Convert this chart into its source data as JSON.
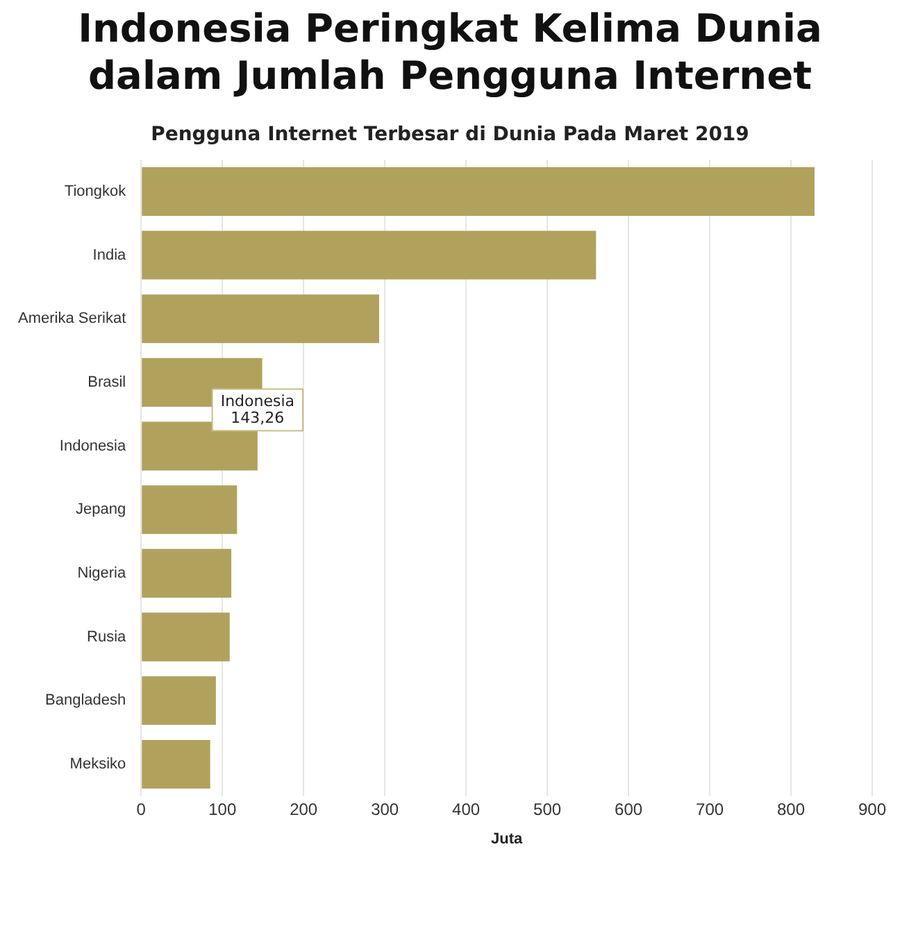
{
  "chart_data": {
    "type": "bar",
    "orientation": "horizontal",
    "title": "Indonesia Peringkat Kelima Dunia dalam Jumlah Pengguna Internet",
    "subtitle": "Pengguna Internet Terbesar di Dunia Pada Maret 2019",
    "xlabel": "Juta",
    "categories": [
      "Tiongkok",
      "India",
      "Amerika Serikat",
      "Brasil",
      "Indonesia",
      "Jepang",
      "Nigeria",
      "Rusia",
      "Bangladesh",
      "Meksiko"
    ],
    "values": [
      829,
      560,
      293,
      149,
      143.26,
      118,
      111,
      109,
      92,
      85
    ],
    "color": "#b0a25c",
    "xlim": [
      0,
      900
    ],
    "xticks": [
      0,
      100,
      200,
      300,
      400,
      500,
      600,
      700,
      800,
      900
    ],
    "grid": "x",
    "legend": false,
    "annotations": [
      {
        "text": "Indonesia\n143,26",
        "x": 143.26,
        "y": "Indonesia"
      }
    ]
  }
}
